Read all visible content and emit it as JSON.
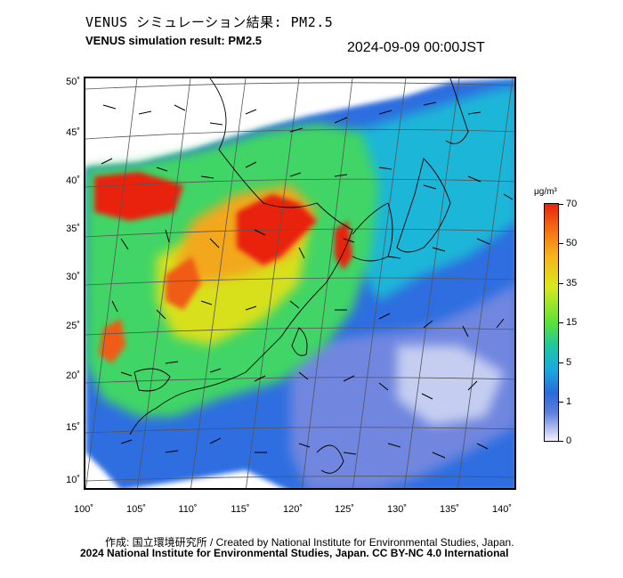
{
  "header": {
    "title_jp": "VENUS シミュレーション結果: PM2.5",
    "title_en": "VENUS simulation result: PM2.5",
    "timestamp": "2024-09-09 00:00JST"
  },
  "map": {
    "lat_ticks": [
      "50˚",
      "45˚",
      "40˚",
      "35˚",
      "30˚",
      "25˚",
      "20˚",
      "15˚",
      "10˚"
    ],
    "lon_ticks": [
      "100˚",
      "105˚",
      "110˚",
      "115˚",
      "120˚",
      "125˚",
      "130˚",
      "135˚",
      "140˚"
    ]
  },
  "colorbar": {
    "unit": "μg/m³",
    "labels": [
      "70",
      "50",
      "35",
      "15",
      "5",
      "1",
      "0"
    ],
    "colors": [
      "#e8230c",
      "#f6b41c",
      "#d9e81c",
      "#5ce23a",
      "#1ec6a2",
      "#1ba8e0",
      "#2a6ad8",
      "#f2f2fb"
    ]
  },
  "footer": {
    "credit_jp_en": "作成: 国立環境研究所 / Created by National Institute for Environmental Studies, Japan.",
    "license": "2024 National Institute for Environmental Studies, Japan. CC BY-NC 4.0 International"
  }
}
